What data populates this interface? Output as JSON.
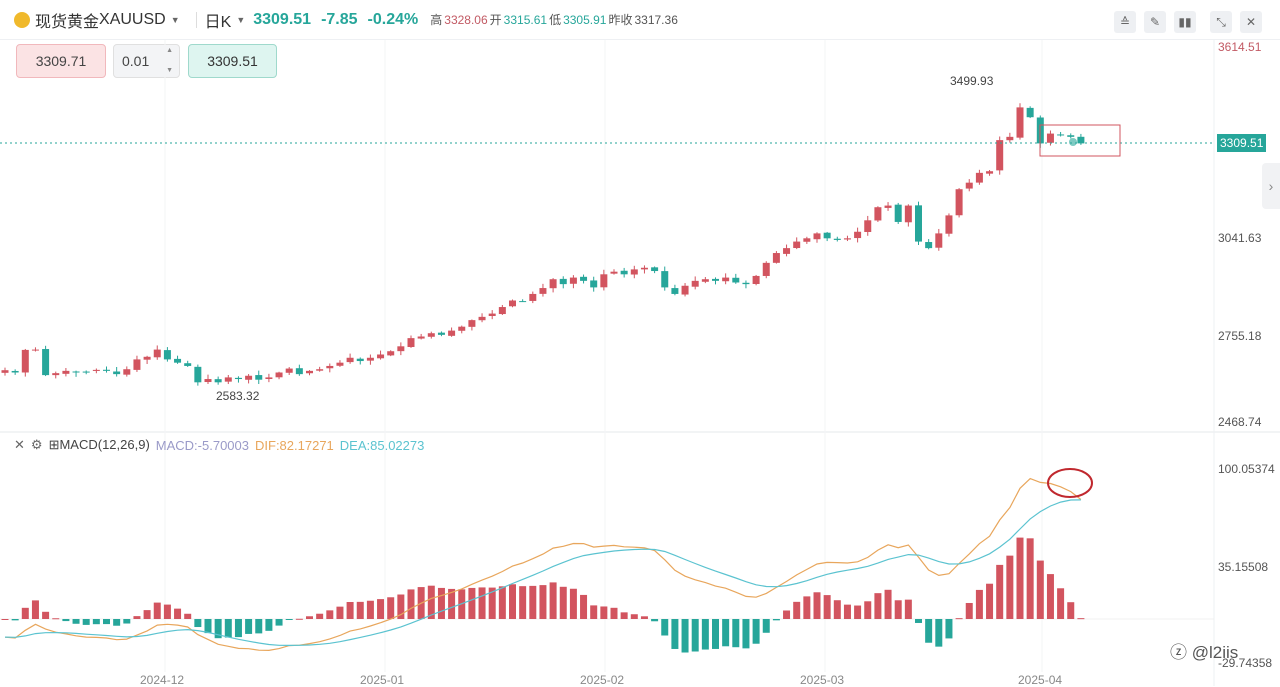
{
  "header": {
    "name": "现货黄金",
    "symbol": "XAUUSD",
    "period": "日K",
    "price": "3309.51",
    "change": "-7.85",
    "change_pct": "-0.24%",
    "high_label": "高",
    "high": "3328.06",
    "open_label": "开",
    "open": "3315.61",
    "low_label": "低",
    "low": "3305.91",
    "prev_label": "昨收",
    "prev": "3317.36"
  },
  "tools": [
    "indicator-icon",
    "draw-icon",
    "candle-type-icon",
    "collapse-icon",
    "close-icon"
  ],
  "trade": {
    "sell": "3309.71",
    "qty": "0.01",
    "buy": "3309.51"
  },
  "price_axis": [
    "3614.51",
    "3041.63",
    "2755.18",
    "2468.74"
  ],
  "current_price": "3309.51",
  "annotations": {
    "high": "3499.93",
    "low": "2583.32"
  },
  "macd": {
    "title": "MACD(12,26,9)",
    "macd": "MACD:-5.70003",
    "dif": "DIF:82.17271",
    "dea": "DEA:85.02273",
    "axis": [
      "100.05374",
      "35.15508",
      "-29.74358"
    ]
  },
  "x_labels": [
    "2024-12",
    "2025-01",
    "2025-02",
    "2025-03",
    "2025-04"
  ],
  "watermark": "@l2iis",
  "colors": {
    "up": "#d2545f",
    "down": "#26a69a",
    "dif": "#e8a65c",
    "dea": "#5bc3d0"
  },
  "chart_data": {
    "type": "candlestick",
    "price_range": [
      2468.74,
      3614.51
    ],
    "closes": [
      2627,
      2620,
      2689,
      2690,
      2612,
      2618,
      2625,
      2620,
      2622,
      2628,
      2625,
      2615,
      2630,
      2660,
      2668,
      2690,
      2660,
      2650,
      2640,
      2590,
      2600,
      2590,
      2605,
      2600,
      2610,
      2598,
      2605,
      2620,
      2632,
      2615,
      2625,
      2630,
      2640,
      2650,
      2665,
      2655,
      2665,
      2675,
      2685,
      2700,
      2725,
      2730,
      2740,
      2735,
      2748,
      2760,
      2780,
      2790,
      2800,
      2820,
      2840,
      2838,
      2860,
      2878,
      2905,
      2890,
      2910,
      2900,
      2880,
      2920,
      2928,
      2920,
      2935,
      2940,
      2930,
      2880,
      2860,
      2885,
      2900,
      2905,
      2900,
      2910,
      2895,
      2890,
      2915,
      2955,
      2985,
      3000,
      3020,
      3030,
      3045,
      3030,
      3025,
      3030,
      3050,
      3085,
      3125,
      3130,
      3080,
      3130,
      3020,
      3000,
      3045,
      3100,
      3180,
      3200,
      3230,
      3235,
      3330,
      3340,
      3430,
      3400,
      3320,
      3350,
      3345,
      3340,
      3320
    ]
  }
}
